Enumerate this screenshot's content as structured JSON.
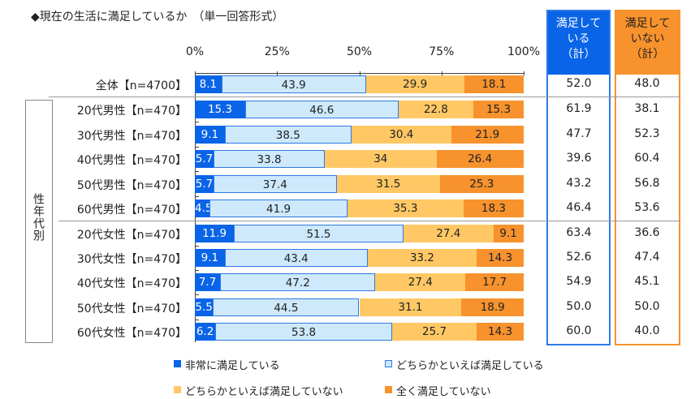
{
  "title": "◆現在の生活に満足しているか　（単一回答形式）",
  "group_label": "性年代別",
  "colors": {
    "very": "#0a64e8",
    "somewhat": "#cde9fb",
    "somewhat_not": "#ffc864",
    "not": "#f7922d",
    "blue_border": "#2f7ae5"
  },
  "summary_headers": {
    "satisfied": "満足している（計）",
    "satisfied_lines": [
      "満足して",
      "いる",
      "（計）"
    ],
    "unsatisfied_lines": [
      "満足して",
      "いない",
      "（計）"
    ]
  },
  "chart_data": {
    "type": "bar",
    "stacked": true,
    "orientation": "horizontal",
    "title": "◆現在の生活に満足しているか　（単一回答形式）",
    "xlim": [
      0,
      100
    ],
    "tick_labels": [
      "0%",
      "25%",
      "50%",
      "75%",
      "100%"
    ],
    "legend": [
      "非常に満足している",
      "どちらかといえば満足している",
      "どちらかといえば満足していない",
      "全く満足していない"
    ],
    "legend_position": "bottom",
    "categories": [
      "全体【n=4700】",
      "20代男性【n=470】",
      "30代男性【n=470】",
      "40代男性【n=470】",
      "50代男性【n=470】",
      "60代男性【n=470】",
      "20代女性【n=470】",
      "30代女性【n=470】",
      "40代女性【n=470】",
      "50代女性【n=470】",
      "60代女性【n=470】"
    ],
    "series": [
      {
        "name": "非常に満足している",
        "values": [
          8.1,
          15.3,
          9.1,
          5.7,
          5.7,
          4.5,
          11.9,
          9.1,
          7.7,
          5.5,
          6.2
        ]
      },
      {
        "name": "どちらかといえば満足している",
        "values": [
          43.9,
          46.6,
          38.5,
          33.8,
          37.4,
          41.9,
          51.5,
          43.4,
          47.2,
          44.5,
          53.8
        ]
      },
      {
        "name": "どちらかといえば満足していない",
        "values": [
          29.9,
          22.8,
          30.4,
          34.0,
          31.5,
          35.3,
          27.4,
          33.2,
          27.4,
          31.1,
          25.7
        ]
      },
      {
        "name": "全く満足していない",
        "values": [
          18.1,
          15.3,
          21.9,
          26.4,
          25.3,
          18.3,
          9.1,
          14.3,
          17.7,
          18.9,
          14.3
        ]
      }
    ],
    "satisfied_total": [
      "52.0",
      "61.9",
      "47.7",
      "39.6",
      "43.2",
      "46.4",
      "63.4",
      "52.6",
      "54.9",
      "50.0",
      "60.0"
    ],
    "unsatisfied_total": [
      "48.0",
      "38.1",
      "52.3",
      "60.4",
      "56.8",
      "53.6",
      "36.6",
      "47.4",
      "45.1",
      "50.0",
      "40.0"
    ]
  }
}
